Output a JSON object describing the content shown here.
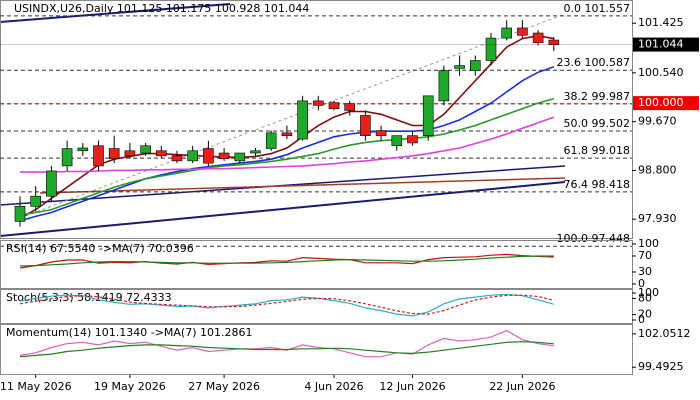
{
  "chart_data": [
    {
      "type": "candlestick",
      "title": "USINDX,U26,Daily  101.125 101.175 100.928 101.044",
      "categories": [
        null,
        "11 May 2026",
        null,
        null,
        null,
        null,
        null,
        "19 May 2026",
        null,
        null,
        null,
        null,
        null,
        "27 May 2026",
        null,
        null,
        null,
        null,
        null,
        null,
        "4 Jun 2026",
        null,
        null,
        null,
        null,
        "12 Jun 2026",
        null,
        null,
        null,
        null,
        null,
        null,
        "22 Jun 2026",
        null,
        null
      ],
      "open": [
        97.89,
        98.16,
        98.34,
        98.88,
        99.15,
        99.24,
        99.19,
        99.15,
        99.11,
        99.15,
        99.06,
        98.97,
        99.19,
        99.11,
        98.97,
        99.11,
        99.19,
        99.47,
        99.36,
        100.04,
        100.01,
        99.99,
        99.78,
        99.51,
        99.24,
        99.42,
        99.42,
        100.04,
        100.62,
        100.58,
        100.76,
        101.16,
        101.34,
        101.25,
        101.125
      ],
      "high": [
        98.34,
        98.52,
        98.88,
        99.33,
        99.29,
        99.33,
        99.42,
        99.29,
        99.29,
        99.24,
        99.15,
        99.24,
        99.33,
        99.2,
        99.11,
        99.2,
        99.51,
        99.6,
        100.13,
        100.13,
        100.04,
        100.04,
        99.87,
        99.6,
        99.42,
        99.51,
        100.13,
        100.67,
        100.85,
        100.85,
        101.25,
        101.48,
        101.48,
        101.3,
        101.175
      ],
      "low": [
        97.8,
        98.07,
        98.25,
        98.79,
        99.06,
        98.79,
        98.93,
        99.01,
        99.06,
        99.01,
        98.93,
        98.93,
        98.88,
        98.97,
        98.93,
        99.06,
        99.15,
        99.36,
        99.33,
        99.87,
        99.87,
        99.78,
        99.33,
        99.33,
        99.15,
        99.24,
        99.33,
        99.96,
        100.49,
        100.49,
        100.67,
        101.12,
        101.16,
        101.03,
        100.928
      ],
      "close": [
        98.16,
        98.34,
        98.79,
        99.19,
        99.2,
        98.88,
        99.01,
        99.06,
        99.24,
        99.06,
        98.97,
        99.15,
        98.93,
        99.01,
        99.11,
        99.15,
        99.47,
        99.42,
        100.04,
        99.96,
        99.9,
        99.87,
        99.42,
        99.42,
        99.42,
        99.29,
        100.13,
        100.58,
        100.67,
        100.76,
        101.16,
        101.34,
        101.21,
        101.08,
        101.044
      ],
      "up_color": "#1fa82a",
      "down_color": "#e8201c",
      "series": [
        {
          "color": "#7a1010",
          "values": [
            97.95,
            98.1,
            98.3,
            98.5,
            98.7,
            98.9,
            99.0,
            99.05,
            99.1,
            99.1,
            99.08,
            99.07,
            99.05,
            99.04,
            99.03,
            99.05,
            99.1,
            99.2,
            99.4,
            99.6,
            99.75,
            99.85,
            99.85,
            99.8,
            99.7,
            99.6,
            99.6,
            99.8,
            100.1,
            100.4,
            100.7,
            101.0,
            101.15,
            101.2,
            101.15
          ]
        },
        {
          "color": "#1a2ee0",
          "values": [
            97.9,
            97.98,
            98.05,
            98.15,
            98.25,
            98.35,
            98.45,
            98.55,
            98.65,
            98.72,
            98.78,
            98.83,
            98.87,
            98.9,
            98.93,
            98.96,
            99.0,
            99.08,
            99.2,
            99.3,
            99.4,
            99.45,
            99.48,
            99.5,
            99.5,
            99.5,
            99.52,
            99.6,
            99.7,
            99.85,
            100.0,
            100.2,
            100.4,
            100.55,
            100.65
          ]
        },
        {
          "color": "#2a9a2a",
          "values": [
            98.0,
            98.05,
            98.1,
            98.2,
            98.3,
            98.4,
            98.5,
            98.58,
            98.65,
            98.7,
            98.75,
            98.8,
            98.85,
            98.88,
            98.9,
            98.93,
            98.96,
            99.0,
            99.05,
            99.1,
            99.18,
            99.25,
            99.3,
            99.33,
            99.35,
            99.37,
            99.4,
            99.45,
            99.52,
            99.6,
            99.7,
            99.8,
            99.9,
            100.0,
            100.08
          ]
        },
        {
          "color": "#e040e0",
          "values": [
            98.77,
            98.77,
            98.77,
            98.78,
            98.78,
            98.79,
            98.8,
            98.8,
            98.81,
            98.81,
            98.82,
            98.82,
            98.83,
            98.83,
            98.84,
            98.85,
            98.86,
            98.87,
            98.88,
            98.9,
            98.92,
            98.95,
            98.97,
            99.0,
            99.03,
            99.06,
            99.1,
            99.15,
            99.2,
            99.28,
            99.36,
            99.45,
            99.55,
            99.65,
            99.75
          ]
        }
      ],
      "levels": [
        {
          "value": 101.557,
          "label": "0.0 101.557"
        },
        {
          "value": 100.587,
          "label": "23.6 100.587"
        },
        {
          "value": 99.987,
          "label": "38.2 99.987"
        },
        {
          "value": 99.502,
          "label": "50.0 99.502"
        },
        {
          "value": 99.018,
          "label": "61.8 99.018"
        },
        {
          "value": 98.418,
          "label": "76.4 98.418"
        },
        {
          "value": 97.448,
          "label": "100.0 97.448"
        }
      ],
      "price_labels": [
        {
          "value": 101.044,
          "label": "101.044",
          "color": "#000000"
        },
        {
          "value": 100,
          "label": "100.000",
          "color": "#ee0000"
        }
      ],
      "ylim": [
        97.63,
        101.75
      ],
      "yticks": [
        {
          "value": 101.425,
          "label": "101.425"
        },
        {
          "value": 100.54,
          "label": "100.540"
        },
        {
          "value": 99.67,
          "label": "99.670"
        },
        {
          "value": 98.8,
          "label": "98.800"
        },
        {
          "value": 97.93,
          "label": "97.930"
        }
      ]
    },
    {
      "type": "line",
      "title": "RSI(14) 67.5540 ->MA(7) 70.0396",
      "series": [
        {
          "color": "#c01010",
          "values": [
            40,
            46,
            55,
            60,
            60,
            52,
            54,
            53,
            56,
            52,
            50,
            54,
            49,
            51,
            53,
            54,
            58,
            57,
            66,
            64,
            62,
            61,
            53,
            53,
            53,
            51,
            61,
            66,
            67,
            68,
            72,
            74,
            71,
            69,
            67.554
          ]
        },
        {
          "color": "#208020",
          "values": [
            45,
            46,
            48,
            50,
            53,
            55,
            56,
            56,
            55,
            54,
            53,
            53,
            52,
            52,
            52,
            52,
            53,
            54,
            56,
            58,
            60,
            61,
            60,
            59,
            58,
            57,
            57,
            58,
            60,
            62,
            65,
            67,
            69,
            70,
            70.0396
          ]
        }
      ],
      "ylim": [
        0,
        100
      ],
      "yticks": [
        100,
        70,
        30,
        0
      ]
    },
    {
      "type": "line",
      "title": "Stoch(5,3,3) 58.1419 72.4333",
      "series": [
        {
          "color": "#2ab0c8",
          "values": [
            70,
            80,
            88,
            92,
            90,
            75,
            65,
            58,
            60,
            55,
            50,
            52,
            45,
            50,
            55,
            60,
            72,
            75,
            85,
            80,
            72,
            62,
            45,
            35,
            22,
            15,
            30,
            60,
            78,
            85,
            92,
            95,
            90,
            75,
            58.1419
          ]
        },
        {
          "color": "#d02020",
          "dashed": true,
          "values": [
            60,
            70,
            79,
            87,
            90,
            86,
            77,
            66,
            61,
            58,
            55,
            52,
            49,
            49,
            50,
            55,
            62,
            69,
            77,
            80,
            79,
            71,
            60,
            47,
            34,
            24,
            22,
            35,
            56,
            74,
            85,
            91,
            92,
            87,
            72.4333
          ]
        }
      ],
      "ylim": [
        0,
        100
      ],
      "yticks": [
        100,
        80,
        20,
        0
      ]
    },
    {
      "type": "line",
      "title": "Momentum(14) 101.1340 ->MA(7) 101.2861",
      "series": [
        {
          "color": "#e060c0",
          "values": [
            100.4,
            100.6,
            101.0,
            101.3,
            101.4,
            101.2,
            101.5,
            101.3,
            101.4,
            101.1,
            100.8,
            101.0,
            100.7,
            100.8,
            100.9,
            100.9,
            101.0,
            100.8,
            101.2,
            101.0,
            100.9,
            100.6,
            100.3,
            100.3,
            100.6,
            100.5,
            101.2,
            101.7,
            101.5,
            101.6,
            101.8,
            102.3,
            101.6,
            101.3,
            101.134
          ]
        },
        {
          "color": "#208020",
          "values": [
            100.3,
            100.4,
            100.5,
            100.7,
            100.8,
            100.95,
            101.05,
            101.15,
            101.2,
            101.2,
            101.15,
            101.1,
            101.0,
            100.95,
            100.9,
            100.85,
            100.85,
            100.85,
            100.9,
            100.9,
            100.95,
            100.9,
            100.8,
            100.7,
            100.6,
            100.55,
            100.65,
            100.8,
            100.95,
            101.1,
            101.25,
            101.4,
            101.45,
            101.4,
            101.2861
          ]
        }
      ],
      "ylim": [
        99.2,
        102.5
      ],
      "yticks": [
        102.0512,
        99.4925
      ]
    }
  ]
}
